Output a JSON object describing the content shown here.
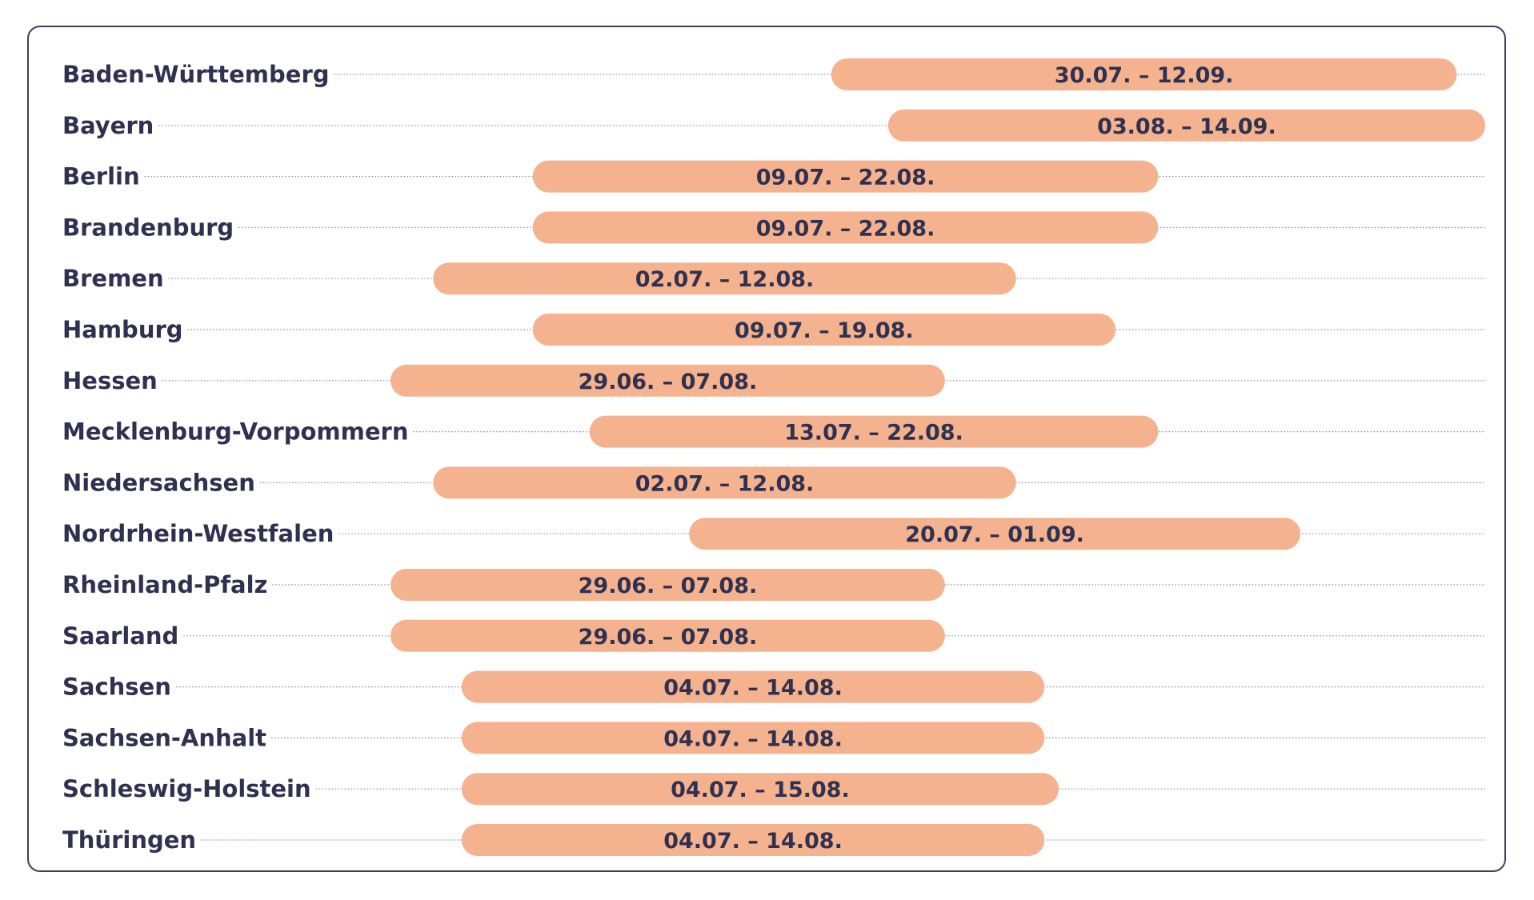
{
  "chart_data": {
    "type": "bar",
    "orientation": "horizontal-range",
    "grid": false,
    "legend": "none",
    "xlim": [
      "2021-06-29",
      "2021-09-14"
    ],
    "series": [
      {
        "name": "",
        "color": "#f5b28f"
      }
    ],
    "rows": [
      {
        "state": "Baden-Württemberg",
        "start": "2021-07-30",
        "end": "2021-09-12",
        "label": "30.07. – 12.09."
      },
      {
        "state": "Bayern",
        "start": "2021-08-03",
        "end": "2021-09-14",
        "label": "03.08. – 14.09."
      },
      {
        "state": "Berlin",
        "start": "2021-07-09",
        "end": "2021-08-22",
        "label": "09.07. – 22.08."
      },
      {
        "state": "Brandenburg",
        "start": "2021-07-09",
        "end": "2021-08-22",
        "label": "09.07. – 22.08."
      },
      {
        "state": "Bremen",
        "start": "2021-07-02",
        "end": "2021-08-12",
        "label": "02.07. – 12.08."
      },
      {
        "state": "Hamburg",
        "start": "2021-07-09",
        "end": "2021-08-19",
        "label": "09.07. – 19.08."
      },
      {
        "state": "Hessen",
        "start": "2021-06-29",
        "end": "2021-08-07",
        "label": "29.06. – 07.08."
      },
      {
        "state": "Mecklenburg-Vorpommern",
        "start": "2021-07-13",
        "end": "2021-08-22",
        "label": "13.07. – 22.08."
      },
      {
        "state": "Niedersachsen",
        "start": "2021-07-02",
        "end": "2021-08-12",
        "label": "02.07. – 12.08."
      },
      {
        "state": "Nordrhein-Westfalen",
        "start": "2021-07-20",
        "end": "2021-09-01",
        "label": "20.07. – 01.09."
      },
      {
        "state": "Rheinland-Pfalz",
        "start": "2021-06-29",
        "end": "2021-08-07",
        "label": "29.06. – 07.08."
      },
      {
        "state": "Saarland",
        "start": "2021-06-29",
        "end": "2021-08-07",
        "label": "29.06. – 07.08."
      },
      {
        "state": "Sachsen",
        "start": "2021-07-04",
        "end": "2021-08-14",
        "label": "04.07. – 14.08."
      },
      {
        "state": "Sachsen-Anhalt",
        "start": "2021-07-04",
        "end": "2021-08-14",
        "label": "04.07. – 14.08."
      },
      {
        "state": "Schleswig-Holstein",
        "start": "2021-07-04",
        "end": "2021-08-15",
        "label": "04.07. – 15.08."
      },
      {
        "state": "Thüringen",
        "start": "2021-07-04",
        "end": "2021-08-14",
        "label": "04.07. – 14.08."
      }
    ]
  }
}
